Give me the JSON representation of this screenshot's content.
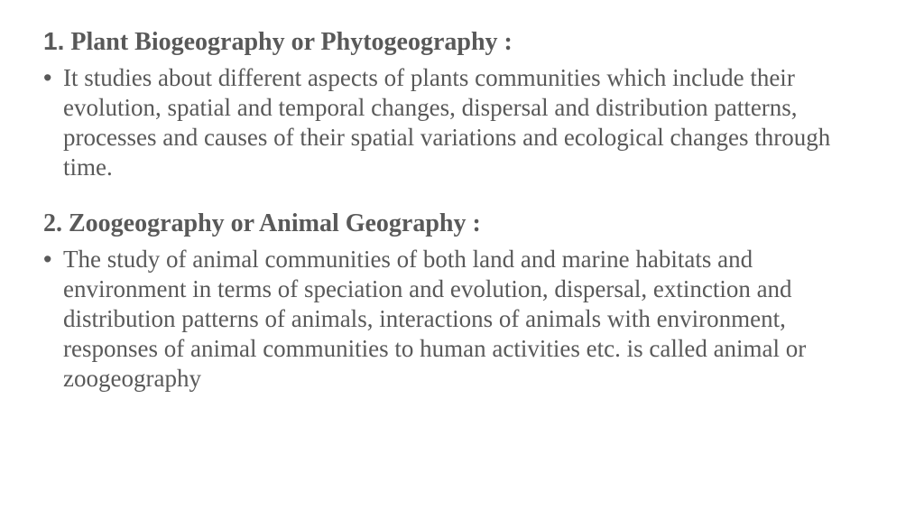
{
  "text_color": "#595959",
  "background_color": "#ffffff",
  "heading_fontsize": 28,
  "body_fontsize": 27,
  "sections": [
    {
      "number_prefix": "1.",
      "title_rest": " Plant Biogeography or Phytogeography  :",
      "bullet": "It studies about different aspects of plants communities which include their evolution, spatial and temporal changes, dispersal and distribution patterns, processes and causes of their spatial variations and ecological changes through time."
    },
    {
      "number_prefix": "2. ",
      "title_rest": "Zoogeography or Animal Geography :",
      "bullet": "The study of animal communities of both land and marine habitats and environment in terms of speciation and evolution, dispersal, extinction and distribution patterns of animals, interactions of animals with environment, responses of animal communities to human activities etc. is called animal or zoogeography"
    }
  ]
}
